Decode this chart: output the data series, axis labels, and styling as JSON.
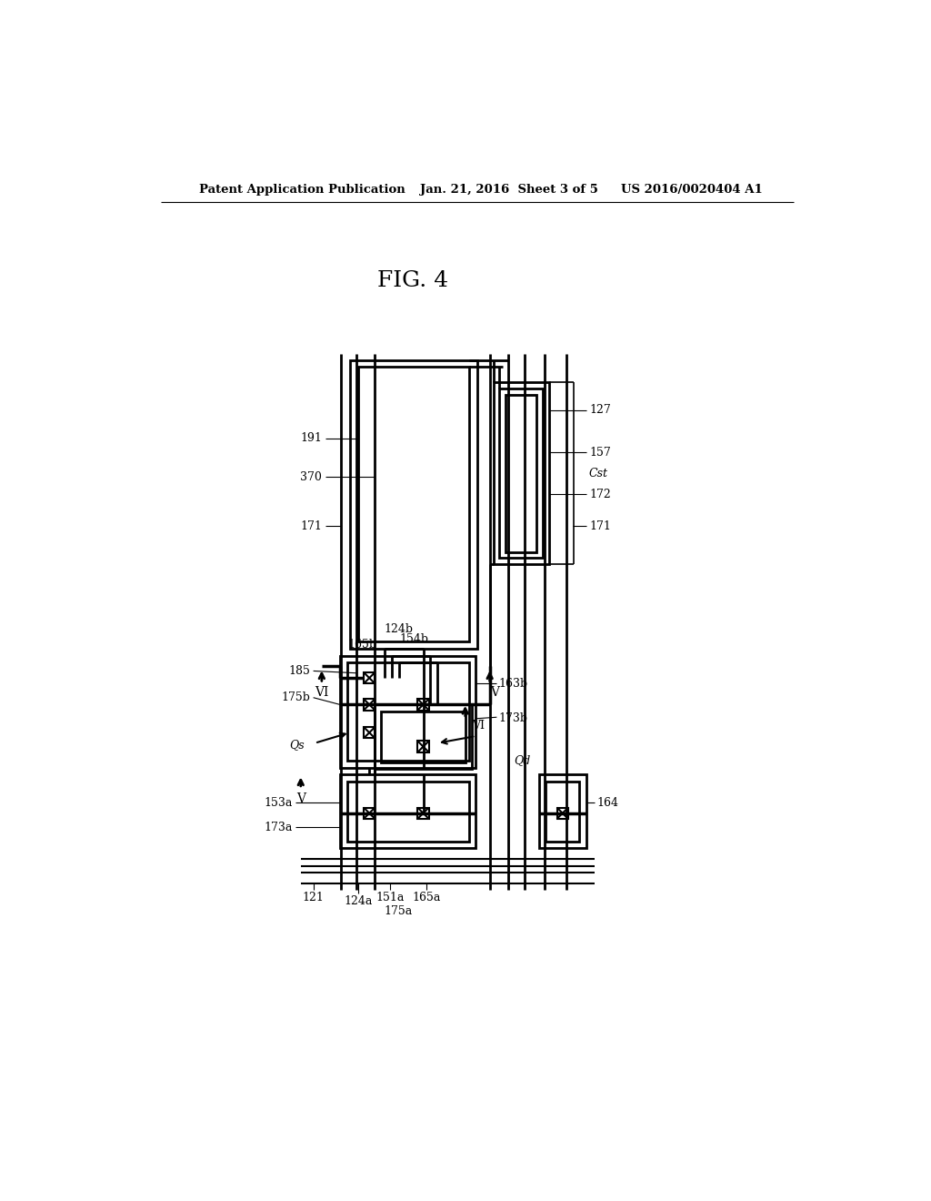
{
  "title": "FIG. 4",
  "header_left": "Patent Application Publication",
  "header_center": "Jan. 21, 2016  Sheet 3 of 5",
  "header_right": "US 2016/0020404 A1",
  "bg_color": "#ffffff",
  "line_color": "#000000",
  "fig_title_fontsize": 18,
  "header_fontsize": 9.5
}
